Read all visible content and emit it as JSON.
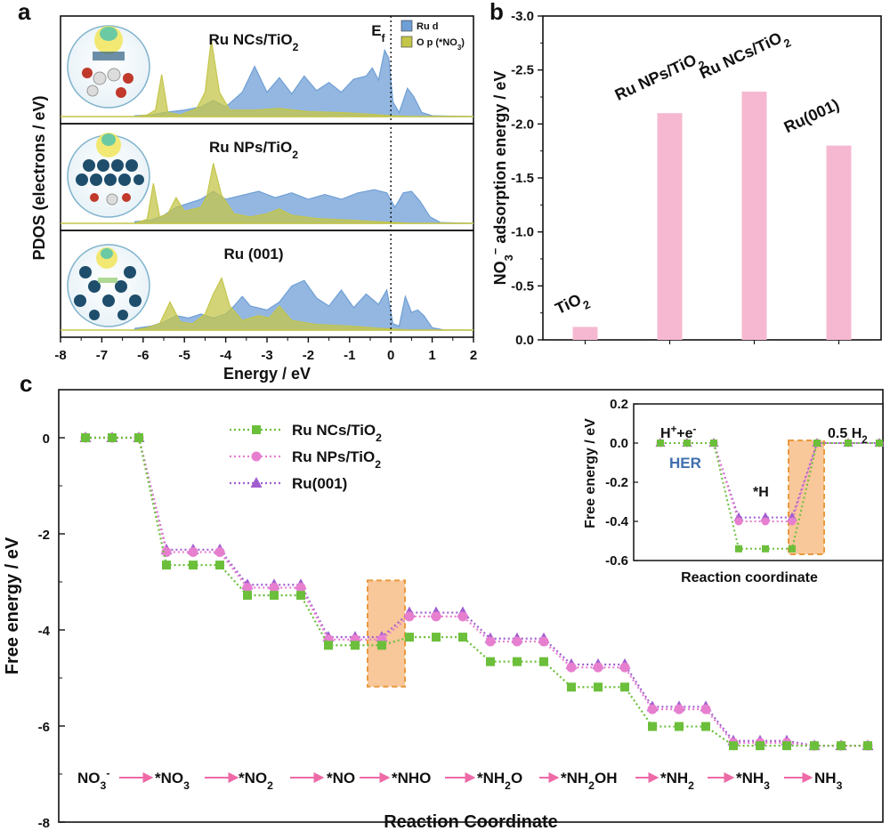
{
  "panels": {
    "a": "a",
    "b": "b",
    "c": "c"
  },
  "colors": {
    "ru_d": "#6f9fd6",
    "o_p": "#c4c64a",
    "bar": "#f6b8d0",
    "ncs": "#6cbf3b",
    "nps": "#e77fcf",
    "ru001": "#a05ed0",
    "highlight": "#f8c79a",
    "highlight_border": "#e89a3e",
    "arrow": "#ee6aa7"
  },
  "panel_a": {
    "ylabel": "PDOS (electrons / eV)",
    "xlabel": "Energy / eV",
    "ef_label": "E",
    "ef_sub": "f",
    "legend": {
      "ru_d": "Ru d",
      "o_p": "O p (*NO",
      "o_p_sub": "3",
      "o_p_end": ")"
    },
    "xticks": [
      "-8",
      "-7",
      "-6",
      "-5",
      "-4",
      "-3",
      "-2",
      "-1",
      "0",
      "1",
      "2"
    ],
    "xlim": [
      -8,
      2
    ],
    "subplots": [
      {
        "title": "Ru NCs/TiO",
        "title_sub": "2",
        "ru_d": [
          [
            -6.2,
            0.01
          ],
          [
            -5.8,
            0.02
          ],
          [
            -5.5,
            0.05
          ],
          [
            -5.0,
            0.08
          ],
          [
            -4.6,
            0.12
          ],
          [
            -4.3,
            0.2
          ],
          [
            -4.0,
            0.12
          ],
          [
            -3.6,
            0.3
          ],
          [
            -3.3,
            0.62
          ],
          [
            -3.0,
            0.3
          ],
          [
            -2.7,
            0.48
          ],
          [
            -2.4,
            0.28
          ],
          [
            -2.1,
            0.5
          ],
          [
            -1.8,
            0.32
          ],
          [
            -1.5,
            0.42
          ],
          [
            -1.2,
            0.3
          ],
          [
            -0.9,
            0.46
          ],
          [
            -0.6,
            0.5
          ],
          [
            -0.45,
            0.6
          ],
          [
            -0.3,
            0.45
          ],
          [
            -0.15,
            0.82
          ],
          [
            -0.05,
            0.72
          ],
          [
            0.05,
            0.18
          ],
          [
            0.2,
            0.05
          ],
          [
            0.4,
            0.35
          ],
          [
            0.55,
            0.25
          ],
          [
            0.75,
            0.05
          ],
          [
            1.0,
            0.01
          ],
          [
            2.0,
            0.0
          ]
        ],
        "o_p": [
          [
            -6.2,
            0.0
          ],
          [
            -5.9,
            0.02
          ],
          [
            -5.7,
            0.08
          ],
          [
            -5.55,
            0.52
          ],
          [
            -5.4,
            0.05
          ],
          [
            -5.1,
            0.02
          ],
          [
            -4.7,
            0.1
          ],
          [
            -4.5,
            0.3
          ],
          [
            -4.35,
            0.95
          ],
          [
            -4.15,
            0.3
          ],
          [
            -3.9,
            0.08
          ],
          [
            -3.3,
            0.08
          ],
          [
            -2.7,
            0.1
          ],
          [
            -2.0,
            0.06
          ],
          [
            -1.2,
            0.05
          ],
          [
            -0.5,
            0.03
          ],
          [
            0.0,
            0.01
          ],
          [
            0.5,
            0.0
          ],
          [
            2.0,
            0.0
          ]
        ]
      },
      {
        "title": "Ru NPs/TiO",
        "title_sub": "2",
        "ru_d": [
          [
            -6.2,
            0.02
          ],
          [
            -5.8,
            0.04
          ],
          [
            -5.5,
            0.1
          ],
          [
            -5.2,
            0.2
          ],
          [
            -4.9,
            0.25
          ],
          [
            -4.6,
            0.3
          ],
          [
            -4.3,
            0.4
          ],
          [
            -4.0,
            0.3
          ],
          [
            -3.6,
            0.35
          ],
          [
            -3.2,
            0.4
          ],
          [
            -2.8,
            0.32
          ],
          [
            -2.4,
            0.38
          ],
          [
            -2.0,
            0.3
          ],
          [
            -1.6,
            0.36
          ],
          [
            -1.2,
            0.3
          ],
          [
            -0.8,
            0.38
          ],
          [
            -0.4,
            0.42
          ],
          [
            -0.1,
            0.38
          ],
          [
            0.1,
            0.2
          ],
          [
            0.3,
            0.38
          ],
          [
            0.5,
            0.4
          ],
          [
            0.7,
            0.28
          ],
          [
            0.95,
            0.08
          ],
          [
            1.2,
            0.01
          ],
          [
            2.0,
            0.0
          ]
        ],
        "o_p": [
          [
            -6.2,
            0.0
          ],
          [
            -5.9,
            0.05
          ],
          [
            -5.75,
            0.5
          ],
          [
            -5.6,
            0.08
          ],
          [
            -5.4,
            0.12
          ],
          [
            -5.2,
            0.32
          ],
          [
            -5.0,
            0.15
          ],
          [
            -4.6,
            0.2
          ],
          [
            -4.45,
            0.35
          ],
          [
            -4.3,
            0.75
          ],
          [
            -4.1,
            0.35
          ],
          [
            -3.8,
            0.12
          ],
          [
            -3.4,
            0.08
          ],
          [
            -3.0,
            0.12
          ],
          [
            -2.7,
            0.18
          ],
          [
            -2.4,
            0.1
          ],
          [
            -1.8,
            0.06
          ],
          [
            -1.0,
            0.04
          ],
          [
            -0.3,
            0.02
          ],
          [
            0.5,
            0.0
          ],
          [
            2.0,
            0.0
          ]
        ]
      },
      {
        "title": "Ru (001)",
        "title_sub": "",
        "ru_d": [
          [
            -6.2,
            0.02
          ],
          [
            -5.8,
            0.05
          ],
          [
            -5.5,
            0.1
          ],
          [
            -5.2,
            0.18
          ],
          [
            -4.9,
            0.15
          ],
          [
            -4.6,
            0.2
          ],
          [
            -4.3,
            0.15
          ],
          [
            -4.0,
            0.2
          ],
          [
            -3.8,
            0.3
          ],
          [
            -3.6,
            0.42
          ],
          [
            -3.4,
            0.3
          ],
          [
            -3.0,
            0.25
          ],
          [
            -2.7,
            0.35
          ],
          [
            -2.4,
            0.55
          ],
          [
            -2.1,
            0.62
          ],
          [
            -1.8,
            0.4
          ],
          [
            -1.5,
            0.3
          ],
          [
            -1.2,
            0.5
          ],
          [
            -0.9,
            0.28
          ],
          [
            -0.6,
            0.45
          ],
          [
            -0.3,
            0.32
          ],
          [
            -0.1,
            0.5
          ],
          [
            0.05,
            0.08
          ],
          [
            0.2,
            0.05
          ],
          [
            0.35,
            0.42
          ],
          [
            0.5,
            0.22
          ],
          [
            0.65,
            0.25
          ],
          [
            0.8,
            0.18
          ],
          [
            1.0,
            0.03
          ],
          [
            1.3,
            0.0
          ],
          [
            2.0,
            0.0
          ]
        ],
        "o_p": [
          [
            -6.2,
            0.0
          ],
          [
            -5.9,
            0.03
          ],
          [
            -5.6,
            0.08
          ],
          [
            -5.35,
            0.35
          ],
          [
            -5.1,
            0.1
          ],
          [
            -4.8,
            0.08
          ],
          [
            -4.5,
            0.2
          ],
          [
            -4.3,
            0.45
          ],
          [
            -4.1,
            0.65
          ],
          [
            -3.9,
            0.3
          ],
          [
            -3.6,
            0.12
          ],
          [
            -3.2,
            0.18
          ],
          [
            -2.95,
            0.15
          ],
          [
            -2.7,
            0.3
          ],
          [
            -2.4,
            0.12
          ],
          [
            -1.8,
            0.07
          ],
          [
            -1.0,
            0.05
          ],
          [
            -0.2,
            0.02
          ],
          [
            0.5,
            0.0
          ],
          [
            2.0,
            0.0
          ]
        ]
      }
    ]
  },
  "chart_data": [
    {
      "type": "bar",
      "panel": "b",
      "categories": [
        "TiO2",
        "Ru NPs/TiO2",
        "Ru NCs/TiO2",
        "Ru(001)"
      ],
      "category_labels": [
        [
          "TiO",
          "2",
          ""
        ],
        [
          "Ru NPs/TiO",
          "2",
          ""
        ],
        [
          "Ru NCs/TiO",
          "2",
          ""
        ],
        [
          "Ru(001)",
          "",
          ""
        ]
      ],
      "values": [
        -0.12,
        -2.1,
        -2.3,
        -1.8
      ],
      "ylabel_pre": "NO",
      "ylabel_sub": "3",
      "ylabel_sup": "−",
      "ylabel_post": " adsorption energy / eV",
      "ylim": [
        0.0,
        -3.0
      ],
      "yticks": [
        "0.0",
        "-0.5",
        "-1.0",
        "-1.5",
        "-2.0",
        "-2.5",
        "-3.0"
      ]
    },
    {
      "type": "line",
      "panel": "c",
      "ylabel": "Free energy / eV",
      "xlabel": "Reaction Coordinate",
      "ylim": [
        -8,
        1
      ],
      "yticks": [
        "0",
        "-2",
        "-4",
        "-6",
        "-8"
      ],
      "steps": [
        {
          "m": "NO",
          "sub": "3",
          "sup": "-",
          "end": ""
        },
        {
          "m": "*NO",
          "sub": "3",
          "sup": "",
          "end": ""
        },
        {
          "m": "*NO",
          "sub": "2",
          "sup": "",
          "end": ""
        },
        {
          "m": "*NO",
          "sub": "",
          "sup": "",
          "end": ""
        },
        {
          "m": "*NHO",
          "sub": "",
          "sup": "",
          "end": ""
        },
        {
          "m": "*NH",
          "sub": "2",
          "sup": "",
          "end": "O"
        },
        {
          "m": "*NH",
          "sub": "2",
          "sup": "",
          "end": "OH"
        },
        {
          "m": "*NH",
          "sub": "2",
          "sup": "",
          "end": ""
        },
        {
          "m": "*NH",
          "sub": "3",
          "sup": "",
          "end": ""
        },
        {
          "m": "NH",
          "sub": "3",
          "sup": "",
          "end": ""
        }
      ],
      "series": [
        {
          "name": "Ru NCs/TiO",
          "name_sub": "2",
          "marker": "square",
          "values": [
            0.0,
            -2.65,
            -3.28,
            -4.32,
            -4.15,
            -4.66,
            -5.19,
            -6.01,
            -6.41,
            -6.41
          ]
        },
        {
          "name": "Ru NPs/TiO",
          "name_sub": "2",
          "marker": "circle",
          "values": [
            0.0,
            -2.38,
            -3.12,
            -4.2,
            -3.72,
            -4.24,
            -4.78,
            -5.65,
            -6.35,
            -6.41
          ]
        },
        {
          "name": "Ru(001)",
          "name_sub": "",
          "marker": "triangle",
          "values": [
            0.0,
            -2.33,
            -3.06,
            -4.15,
            -3.64,
            -4.18,
            -4.72,
            -5.6,
            -6.31,
            -6.41
          ]
        }
      ],
      "highlight_step": "*NO → *NHO"
    },
    {
      "type": "line",
      "panel": "c-inset",
      "ylabel": "Free energy / eV",
      "xlabel": "Reaction coordinate",
      "ylim": [
        -0.6,
        0.2
      ],
      "yticks": [
        "0.2",
        "0.0",
        "-0.2",
        "-0.4",
        "-0.6"
      ],
      "labels": {
        "start_pre": "H",
        "start_sup1": "+",
        "start_mid": "+e",
        "start_sup2": "-",
        "mid": "*H",
        "end_pre": "0.5 H",
        "end_sub": "2",
        "her": "HER"
      },
      "series": [
        {
          "name": "Ru NCs/TiO2",
          "values": [
            0.0,
            -0.54,
            0.0
          ]
        },
        {
          "name": "Ru NPs/TiO2",
          "values": [
            0.0,
            -0.4,
            0.0
          ]
        },
        {
          "name": "Ru(001)",
          "values": [
            0.0,
            -0.38,
            0.0
          ]
        }
      ]
    }
  ]
}
